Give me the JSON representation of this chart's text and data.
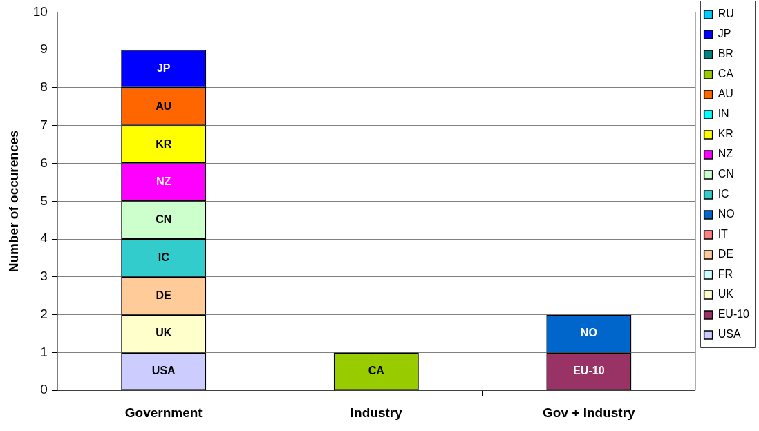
{
  "chart_data": {
    "type": "bar",
    "stacked": true,
    "ylabel": "Number of occurences",
    "categories": [
      "Government",
      "Industry",
      "Gov + Industry"
    ],
    "series": [
      {
        "name": "USA",
        "color": "#ccccff",
        "values": [
          1,
          null,
          null
        ]
      },
      {
        "name": "EU-10",
        "color": "#993366",
        "values": [
          null,
          null,
          1
        ]
      },
      {
        "name": "UK",
        "color": "#ffffcc",
        "values": [
          1,
          null,
          null
        ]
      },
      {
        "name": "FR",
        "color": "#ccffff",
        "values": [
          null,
          null,
          null
        ]
      },
      {
        "name": "DE",
        "color": "#ffcc99",
        "values": [
          1,
          null,
          null
        ]
      },
      {
        "name": "IT",
        "color": "#ff8080",
        "values": [
          null,
          null,
          null
        ]
      },
      {
        "name": "NO",
        "color": "#0066cc",
        "values": [
          null,
          null,
          1
        ]
      },
      {
        "name": "IC",
        "color": "#33cccc",
        "values": [
          1,
          null,
          null
        ]
      },
      {
        "name": "CN",
        "color": "#ccffcc",
        "values": [
          1,
          null,
          null
        ]
      },
      {
        "name": "NZ",
        "color": "#ff00ff",
        "values": [
          1,
          null,
          null
        ]
      },
      {
        "name": "KR",
        "color": "#ffff00",
        "values": [
          1,
          null,
          null
        ]
      },
      {
        "name": "IN",
        "color": "#00ffff",
        "values": [
          null,
          null,
          null
        ]
      },
      {
        "name": "AU",
        "color": "#ff6600",
        "values": [
          1,
          null,
          null
        ]
      },
      {
        "name": "CA",
        "color": "#99cc00",
        "values": [
          null,
          1,
          null
        ]
      },
      {
        "name": "BR",
        "color": "#008080",
        "values": [
          null,
          null,
          null
        ]
      },
      {
        "name": "JP",
        "color": "#0000ff",
        "values": [
          1,
          null,
          null
        ]
      },
      {
        "name": "RU",
        "color": "#00ccff",
        "values": [
          null,
          null,
          null
        ]
      }
    ],
    "ylim": [
      0,
      10
    ],
    "yticks": [
      0,
      1,
      2,
      3,
      4,
      5,
      6,
      7,
      8,
      9,
      10
    ],
    "grid": "y",
    "legend": "right"
  }
}
